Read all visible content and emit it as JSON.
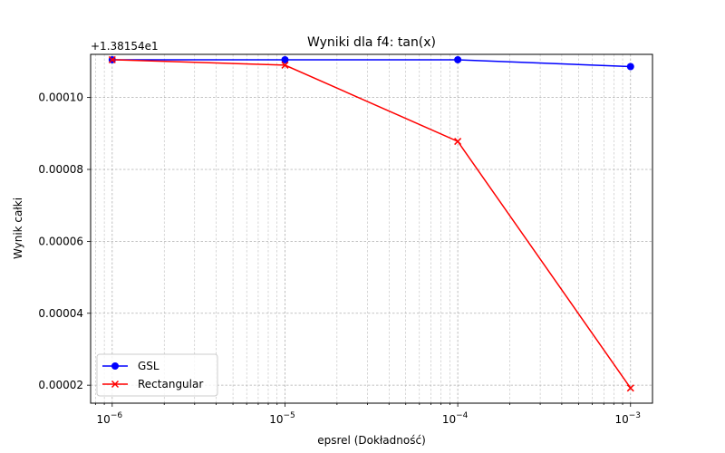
{
  "chart_data": {
    "type": "line",
    "title": "Wyniki dla f4: tan(x)",
    "xlabel": "epsrel (Dokładność)",
    "ylabel": "Wynik całki",
    "offset_label": "+1.38154e1",
    "x_scale": "log",
    "x": [
      1e-06,
      1e-05,
      0.0001,
      0.001
    ],
    "xlim": [
      7.5e-07,
      0.00134
    ],
    "ylim": [
      1.5e-05,
      0.000112
    ],
    "x_ticks": [
      {
        "value": 1e-06,
        "base": "10",
        "exp": "−6"
      },
      {
        "value": 1e-05,
        "base": "10",
        "exp": "−5"
      },
      {
        "value": 0.0001,
        "base": "10",
        "exp": "−4"
      },
      {
        "value": 0.001,
        "base": "10",
        "exp": "−3"
      }
    ],
    "y_ticks": [
      {
        "value": 2e-05,
        "label": "0.00002"
      },
      {
        "value": 4e-05,
        "label": "0.00004"
      },
      {
        "value": 6e-05,
        "label": "0.00006"
      },
      {
        "value": 8e-05,
        "label": "0.00008"
      },
      {
        "value": 0.0001,
        "label": "0.00010"
      }
    ],
    "grid": true,
    "legend_position": "lower-left",
    "series": [
      {
        "name": "GSL",
        "color": "#0000ff",
        "marker": "circle",
        "values": [
          0.0001105,
          0.0001105,
          0.0001105,
          0.0001086
        ]
      },
      {
        "name": "Rectangular",
        "color": "#ff0000",
        "marker": "x",
        "values": [
          0.0001105,
          0.000109,
          8.78e-05,
          1.92e-05
        ]
      }
    ]
  }
}
